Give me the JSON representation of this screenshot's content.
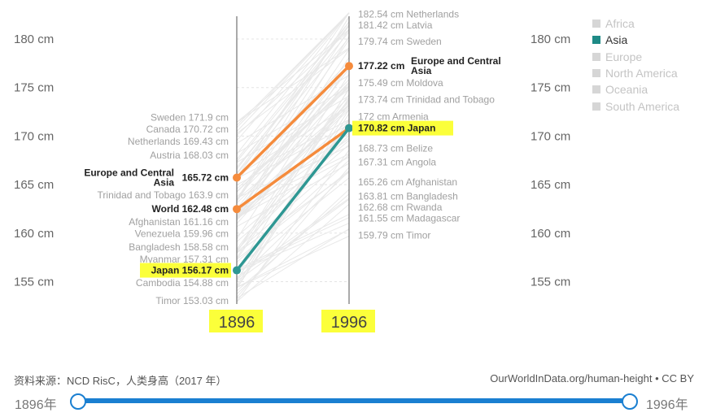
{
  "chart_data": {
    "type": "line",
    "y_unit": "cm",
    "ylim": [
      152.5,
      183
    ],
    "yticks": [
      "180 cm",
      "175 cm",
      "170 cm",
      "165 cm",
      "160 cm",
      "155 cm"
    ],
    "ytick_values": [
      180,
      175,
      170,
      165,
      160,
      155
    ],
    "x": [
      "1896",
      "1996"
    ],
    "highlight_colors": {
      "region": "#f58b3c",
      "asia": "#2e9793",
      "label_highlight": "#fbff3a"
    },
    "left_labels": [
      {
        "name": "Sweden",
        "value": 171.9,
        "value_text": "171.9 cm"
      },
      {
        "name": "Canada",
        "value": 170.72,
        "value_text": "170.72 cm"
      },
      {
        "name": "Netherlands",
        "value": 169.43,
        "value_text": "169.43 cm"
      },
      {
        "name": "Austria",
        "value": 168.03,
        "value_text": "168.03 cm"
      },
      {
        "name": "Europe and Central Asia",
        "value": 165.72,
        "value_text": "165.72 cm",
        "bold": true,
        "name_lines": [
          "Europe and Central",
          "Asia"
        ]
      },
      {
        "name": "Trinidad and Tobago",
        "value": 163.9,
        "value_text": "163.9 cm"
      },
      {
        "name": "World",
        "value": 162.48,
        "value_text": "162.48 cm",
        "bold": true
      },
      {
        "name": "Afghanistan",
        "value": 161.16,
        "value_text": "161.16 cm"
      },
      {
        "name": "Venezuela",
        "value": 159.96,
        "value_text": "159.96 cm"
      },
      {
        "name": "Bangladesh",
        "value": 158.58,
        "value_text": "158.58 cm"
      },
      {
        "name": "Myanmar",
        "value": 157.31,
        "value_text": "157.31 cm"
      },
      {
        "name": "Japan",
        "value": 156.17,
        "value_text": "156.17 cm",
        "bold": true,
        "highlight": true
      },
      {
        "name": "Cambodia",
        "value": 154.88,
        "value_text": "154.88 cm"
      },
      {
        "name": "Timor",
        "value": 153.03,
        "value_text": "153.03 cm"
      }
    ],
    "right_labels": [
      {
        "name": "Netherlands",
        "value": 182.54,
        "value_text": "182.54 cm"
      },
      {
        "name": "Latvia",
        "value": 181.42,
        "value_text": "181.42 cm"
      },
      {
        "name": "Sweden",
        "value": 179.74,
        "value_text": "179.74 cm"
      },
      {
        "name": "Europe and Central Asia",
        "value": 177.22,
        "value_text": "177.22 cm",
        "bold": true,
        "name_lines": [
          "Europe and Central",
          "Asia"
        ]
      },
      {
        "name": "Moldova",
        "value": 175.49,
        "value_text": "175.49 cm"
      },
      {
        "name": "Trinidad and Tobago",
        "value": 173.74,
        "value_text": "173.74 cm"
      },
      {
        "name": "Armenia",
        "value": 172,
        "value_text": "172 cm"
      },
      {
        "name": "Japan",
        "value": 170.82,
        "value_text": "170.82 cm",
        "bold": true,
        "highlight": true
      },
      {
        "name": "Belize",
        "value": 168.73,
        "value_text": "168.73 cm"
      },
      {
        "name": "Angola",
        "value": 167.31,
        "value_text": "167.31 cm"
      },
      {
        "name": "Afghanistan",
        "value": 165.26,
        "value_text": "165.26 cm"
      },
      {
        "name": "Bangladesh",
        "value": 163.81,
        "value_text": "163.81 cm"
      },
      {
        "name": "Rwanda",
        "value": 162.68,
        "value_text": "162.68 cm"
      },
      {
        "name": "Madagascar",
        "value": 161.55,
        "value_text": "161.55 cm"
      },
      {
        "name": "Timor",
        "value": 159.79,
        "value_text": "159.79 cm"
      }
    ],
    "series": [
      {
        "name": "Europe and Central Asia",
        "values": [
          165.72,
          177.22
        ],
        "color": "#f58b3c"
      },
      {
        "name": "World",
        "values": [
          162.48,
          170.82
        ],
        "color": "#f58b3c"
      },
      {
        "name": "Japan",
        "values": [
          156.17,
          170.82
        ],
        "color": "#2e9793"
      }
    ]
  },
  "legend": [
    {
      "label": "Africa",
      "active": false
    },
    {
      "label": "Asia",
      "active": true
    },
    {
      "label": "Europe",
      "active": false
    },
    {
      "label": "North America",
      "active": false
    },
    {
      "label": "Oceania",
      "active": false
    },
    {
      "label": "South America",
      "active": false
    }
  ],
  "footer": {
    "source": "资料来源：NCD RisC，人类身高（2017 年）",
    "credit": "OurWorldInData.org/human-height • CC BY"
  },
  "timeline": {
    "start_label": "1896年",
    "end_label": "1996年"
  }
}
